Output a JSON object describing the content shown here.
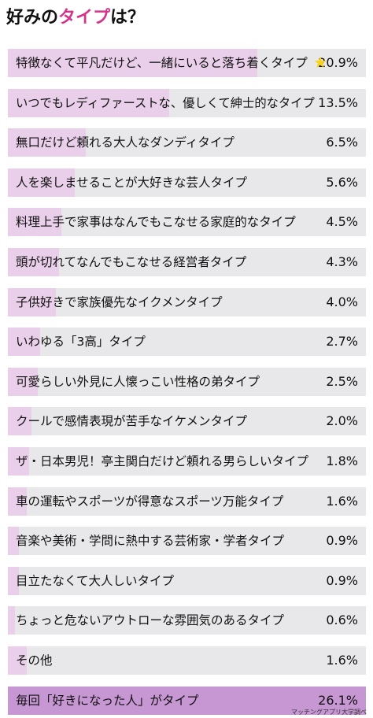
{
  "header": {
    "title_pre": "好みの",
    "title_highlight": "タイプ",
    "title_post": "は？"
  },
  "colors": {
    "title_accent": "#d4358a",
    "bar_track": "#e8e8ea",
    "bar_fill": "#e9cfe9",
    "last_row": "#c797d3",
    "star": "#f7d31a"
  },
  "source": "マッチングアプリ大学調べ",
  "chart_data": {
    "type": "bar",
    "orientation": "horizontal",
    "title": "好みのタイプは？",
    "xlabel": "",
    "ylabel": "",
    "xlim": [
      0,
      30
    ],
    "categories": [
      "特徴なくて平凡だけど、一緒にいると落ち着くタイプ",
      "いつでもレディファーストな、優しくて紳士的なタイプ",
      "無口だけど頼れる大人なダンディタイプ",
      "人を楽しませることが大好きな芸人タイプ",
      "料理上手で家事はなんでもこなせる家庭的なタイプ",
      "頭が切れてなんでもこなせる経営者タイプ",
      "子供好きで家族優先なイクメンタイプ",
      "いわゆる「3高」タイプ",
      "可愛らしい外見に人懐っこい性格の弟タイプ",
      "クールで感情表現が苦手なイケメンタイプ",
      "ザ・日本男児！亭主関白だけど頼れる男らしいタイプ",
      "車の運転やスポーツが得意なスポーツ万能タイプ",
      "音楽や美術・学問に熱中する芸術家・学者タイプ",
      "目立たなくて大人しいタイプ",
      "ちょっと危ないアウトローな雰囲気のあるタイプ",
      "その他",
      "毎回「好きになった人」がタイプ"
    ],
    "values": [
      20.9,
      13.5,
      6.5,
      5.6,
      4.5,
      4.3,
      4.0,
      2.7,
      2.5,
      2.0,
      1.8,
      1.6,
      0.9,
      0.9,
      0.6,
      1.6,
      26.1
    ],
    "value_labels": [
      "20.9%",
      "13.5%",
      "6.5%",
      "5.6%",
      "4.5%",
      "4.3%",
      "4.0%",
      "2.7%",
      "2.5%",
      "2.0%",
      "1.8%",
      "1.6%",
      "0.9%",
      "0.9%",
      "0.6%",
      "1.6%",
      "26.1%"
    ],
    "unit": "%",
    "star_on": "特徴なくて平凡だけど、一緒にいると落ち着くタイプ",
    "legend": "none",
    "grid": false
  }
}
